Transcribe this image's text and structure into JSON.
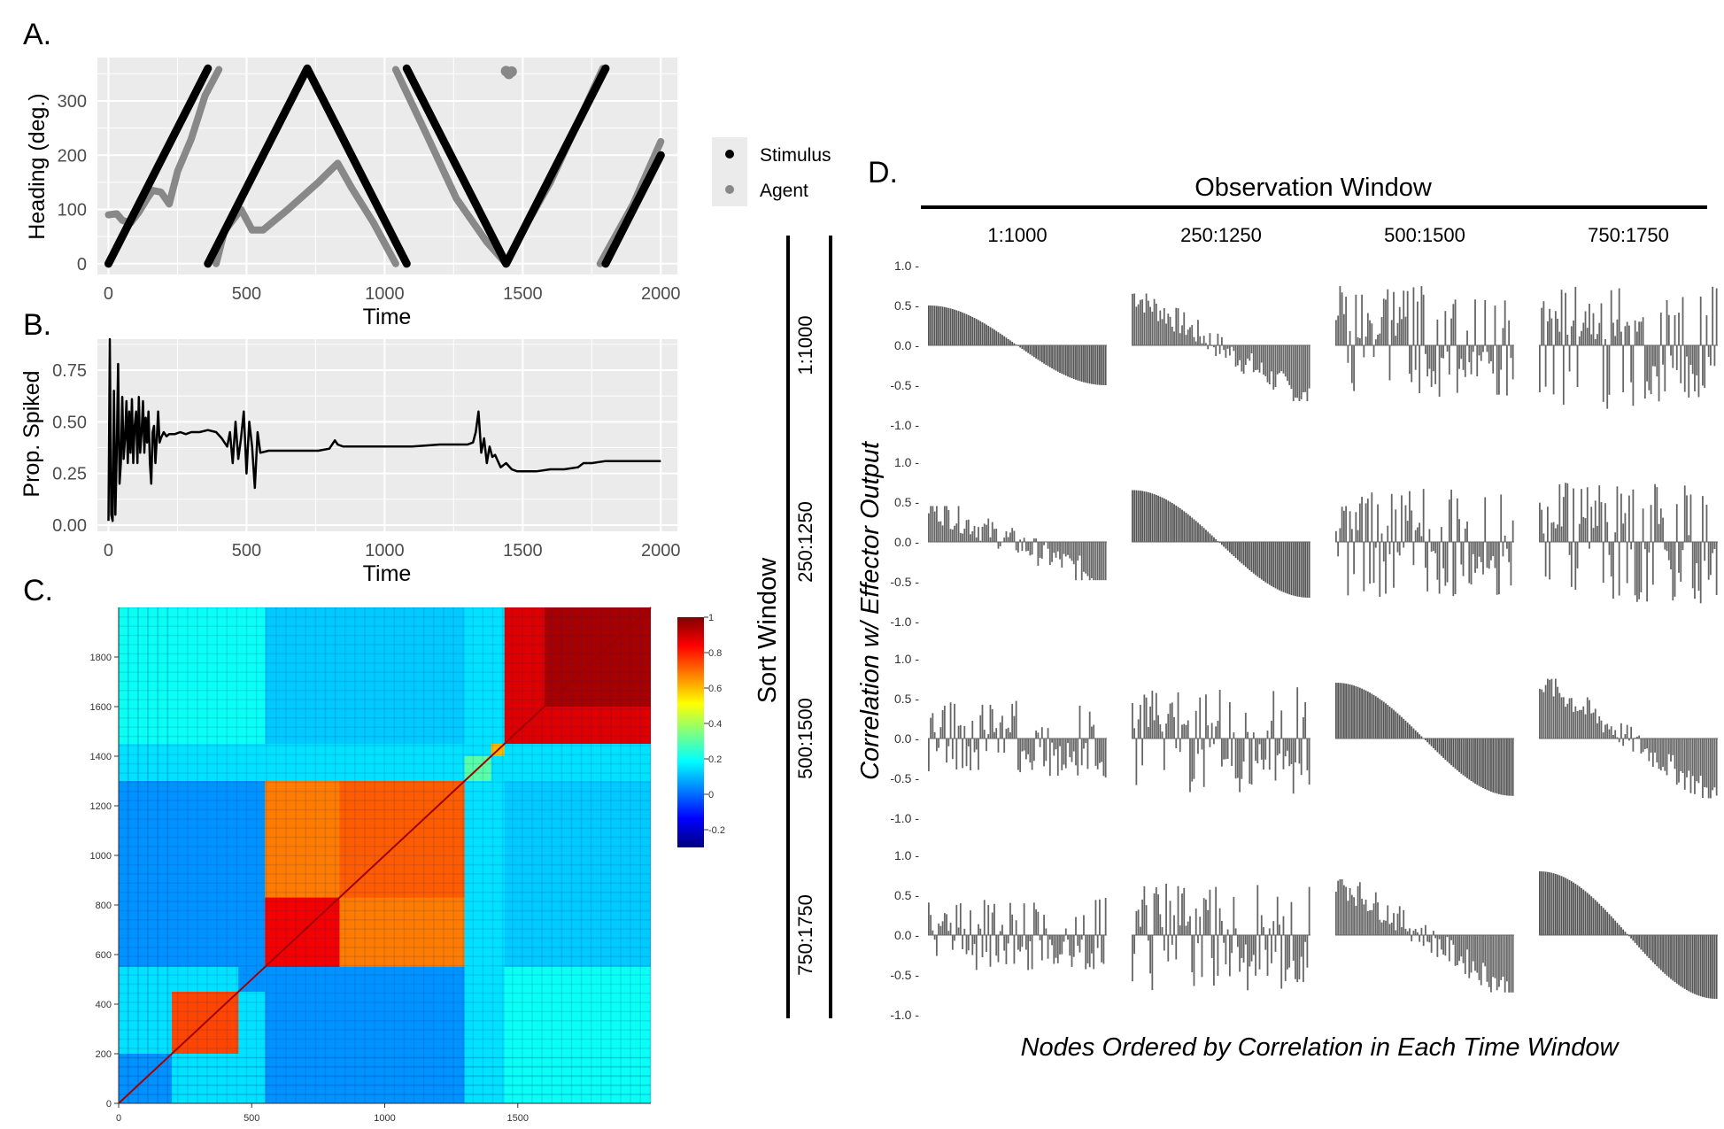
{
  "panels": {
    "a": "A.",
    "b": "B.",
    "c": "C.",
    "d": "D."
  },
  "chart_data": [
    {
      "type": "scatter",
      "panel": "A.",
      "xlabel": "Time",
      "ylabel": "Heading (deg.)",
      "xlim": [
        -40,
        2060
      ],
      "ylim": [
        -20,
        380
      ],
      "xticks": [
        "0",
        "500",
        "1000",
        "1500",
        "2000"
      ],
      "yticks": [
        "0",
        "100",
        "200",
        "300"
      ],
      "grid": true,
      "legend_position": "right",
      "legend": [
        "Stimulus",
        "Agent"
      ],
      "colors": {
        "stimulus": "#000000",
        "agent": "#888888",
        "panel_bg": "#ebebeb",
        "grid": "#ffffff"
      },
      "series": [
        {
          "name": "Stimulus",
          "segments": [
            [
              [
                0,
                0
              ],
              [
                360,
                360
              ]
            ],
            [
              [
                360,
                0
              ],
              [
                720,
                360
              ],
              [
                1080,
                0
              ]
            ],
            [
              [
                1080,
                360
              ],
              [
                1440,
                0
              ],
              [
                1800,
                360
              ]
            ],
            [
              [
                1800,
                0
              ],
              [
                2000,
                200
              ]
            ]
          ]
        },
        {
          "name": "Agent",
          "segments": [
            [
              [
                0,
                90
              ],
              [
                30,
                92
              ],
              [
                50,
                80
              ],
              [
                80,
                75
              ],
              [
                110,
                95
              ],
              [
                140,
                120
              ],
              [
                160,
                135
              ],
              [
                190,
                132
              ],
              [
                220,
                110
              ],
              [
                250,
                170
              ],
              [
                300,
                230
              ],
              [
                350,
                310
              ],
              [
                400,
                358
              ]
            ],
            [
              [
                390,
                0
              ],
              [
                420,
                60
              ],
              [
                480,
                100
              ],
              [
                520,
                62
              ],
              [
                560,
                62
              ],
              [
                650,
                100
              ],
              [
                760,
                150
              ],
              [
                830,
                185
              ],
              [
                880,
                140
              ],
              [
                960,
                75
              ],
              [
                1040,
                0
              ]
            ],
            [
              [
                1040,
                358
              ],
              [
                1150,
                240
              ],
              [
                1260,
                120
              ],
              [
                1370,
                40
              ],
              [
                1440,
                0
              ],
              [
                1500,
                60
              ],
              [
                1600,
                150
              ],
              [
                1700,
                260
              ],
              [
                1790,
                360
              ]
            ],
            [
              [
                1780,
                0
              ],
              [
                1900,
                110
              ],
              [
                2000,
                225
              ]
            ]
          ]
        },
        {
          "name": "Agent",
          "points": [
            [
              1440,
              355
            ],
            [
              1450,
              350
            ],
            [
              1460,
              354
            ]
          ]
        }
      ]
    },
    {
      "type": "line",
      "panel": "B.",
      "xlabel": "Time",
      "ylabel": "Prop. Spiked",
      "xlim": [
        -40,
        2060
      ],
      "ylim": [
        -0.03,
        0.9
      ],
      "xticks": [
        "0",
        "500",
        "1000",
        "1500",
        "2000"
      ],
      "yticks": [
        "0.00",
        "0.25",
        "0.50",
        "0.75"
      ],
      "grid": true,
      "series": [
        {
          "name": "",
          "x": [
            0,
            5,
            10,
            15,
            20,
            25,
            30,
            35,
            40,
            45,
            50,
            55,
            60,
            65,
            70,
            75,
            80,
            85,
            90,
            95,
            100,
            105,
            110,
            115,
            120,
            125,
            130,
            135,
            140,
            145,
            150,
            155,
            160,
            165,
            170,
            175,
            180,
            185,
            190,
            200,
            210,
            220,
            240,
            260,
            280,
            300,
            330,
            360,
            390,
            410,
            420,
            430,
            440,
            450,
            460,
            470,
            480,
            490,
            500,
            510,
            520,
            530,
            540,
            550,
            580,
            650,
            760,
            800,
            820,
            830,
            850,
            900,
            1000,
            1100,
            1200,
            1300,
            1320,
            1330,
            1340,
            1350,
            1360,
            1370,
            1380,
            1390,
            1400,
            1420,
            1440,
            1460,
            1480,
            1500,
            1550,
            1600,
            1650,
            1700,
            1720,
            1750,
            1800,
            1900,
            2000
          ],
          "values": [
            0.02,
            0.9,
            0.05,
            0.02,
            0.65,
            0.05,
            0.35,
            0.78,
            0.2,
            0.3,
            0.62,
            0.32,
            0.42,
            0.6,
            0.3,
            0.55,
            0.35,
            0.61,
            0.3,
            0.48,
            0.55,
            0.3,
            0.62,
            0.35,
            0.45,
            0.6,
            0.35,
            0.52,
            0.4,
            0.55,
            0.3,
            0.2,
            0.45,
            0.48,
            0.3,
            0.42,
            0.55,
            0.4,
            0.42,
            0.45,
            0.43,
            0.44,
            0.44,
            0.45,
            0.44,
            0.45,
            0.45,
            0.46,
            0.45,
            0.42,
            0.4,
            0.38,
            0.45,
            0.3,
            0.5,
            0.32,
            0.42,
            0.55,
            0.25,
            0.5,
            0.38,
            0.18,
            0.45,
            0.35,
            0.36,
            0.36,
            0.36,
            0.37,
            0.41,
            0.39,
            0.38,
            0.38,
            0.38,
            0.38,
            0.39,
            0.39,
            0.4,
            0.45,
            0.55,
            0.35,
            0.42,
            0.3,
            0.38,
            0.33,
            0.34,
            0.28,
            0.3,
            0.27,
            0.26,
            0.26,
            0.26,
            0.27,
            0.27,
            0.28,
            0.3,
            0.3,
            0.31,
            0.31,
            0.31
          ]
        }
      ]
    },
    {
      "type": "heatmap",
      "panel": "C.",
      "xlim": [
        0,
        2000
      ],
      "ylim": [
        0,
        2000
      ],
      "xticks": [
        "0",
        "500",
        "1000",
        "1500"
      ],
      "yticks": [
        "0",
        "200",
        "400",
        "600",
        "800",
        "1000",
        "1200",
        "1400",
        "1600",
        "1800"
      ],
      "colorbar_ticks": [
        "1",
        "0.8",
        "0.6",
        "0.4",
        "0.2",
        "0",
        "-0.2"
      ],
      "colorbar_range": [
        -0.3,
        1.0
      ],
      "background_value": 0.15,
      "blocks": [
        {
          "range": [
            0,
            200
          ],
          "value": 0.05
        },
        {
          "range": [
            200,
            450
          ],
          "value": 0.75
        },
        {
          "range": [
            450,
            550
          ],
          "value": 0.05
        },
        {
          "range": [
            550,
            1300
          ],
          "value": 0.68
        },
        {
          "range": [
            550,
            830
          ],
          "value": 0.85
        },
        {
          "range": [
            830,
            1300
          ],
          "value": 0.72
        },
        {
          "range": [
            1300,
            1400
          ],
          "value": 0.3
        },
        {
          "range": [
            1400,
            1450
          ],
          "value": 0.6
        },
        {
          "range": [
            1450,
            2000
          ],
          "value": 0.88
        },
        {
          "range": [
            1600,
            2000
          ],
          "value": 0.95
        }
      ],
      "offdiag": [
        {
          "x": [
            0,
            550
          ],
          "y": [
            550,
            1300
          ],
          "value": 0.05
        },
        {
          "x": [
            550,
            1300
          ],
          "y": [
            1450,
            2000
          ],
          "value": 0.12
        },
        {
          "x": [
            0,
            550
          ],
          "y": [
            1450,
            2000
          ],
          "value": 0.2
        }
      ]
    },
    {
      "type": "bar",
      "panel": "D.",
      "title": "Observation Window",
      "row_title": "Sort Window",
      "ylabel": "Correlation w/ Effector Output",
      "xlabel": "Nodes Ordered by Correlation in Each Time Window",
      "columns": [
        "1:1000",
        "250:1250",
        "500:1500",
        "750:1750"
      ],
      "rows": [
        "1:1000",
        "250:1250",
        "500:1500",
        "750:1750"
      ],
      "ylim": [
        -1.0,
        1.0
      ],
      "yticks": [
        "1.0",
        "0.5",
        "0.0",
        "-0.5",
        "-1.0"
      ],
      "grid": [
        [
          {
            "pos": 0.5,
            "neg": -0.5,
            "style": "sorted"
          },
          {
            "pos": 0.65,
            "neg": -0.7,
            "style": "mixed"
          },
          {
            "pos": 0.75,
            "neg": -0.65,
            "style": "noise"
          },
          {
            "pos": 0.75,
            "neg": -0.8,
            "style": "noise"
          }
        ],
        [
          {
            "pos": 0.45,
            "neg": -0.48,
            "style": "mixed"
          },
          {
            "pos": 0.65,
            "neg": -0.7,
            "style": "sorted"
          },
          {
            "pos": 0.7,
            "neg": -0.7,
            "style": "noise"
          },
          {
            "pos": 0.75,
            "neg": -0.8,
            "style": "noise"
          }
        ],
        [
          {
            "pos": 0.5,
            "neg": -0.5,
            "style": "noise"
          },
          {
            "pos": 0.65,
            "neg": -0.7,
            "style": "noise"
          },
          {
            "pos": 0.7,
            "neg": -0.72,
            "style": "sorted"
          },
          {
            "pos": 0.75,
            "neg": -0.75,
            "style": "mixed"
          }
        ],
        [
          {
            "pos": 0.5,
            "neg": -0.45,
            "style": "noise"
          },
          {
            "pos": 0.65,
            "neg": -0.7,
            "style": "noise"
          },
          {
            "pos": 0.7,
            "neg": -0.72,
            "style": "mixed"
          },
          {
            "pos": 0.8,
            "neg": -0.8,
            "style": "sorted"
          }
        ]
      ]
    }
  ]
}
